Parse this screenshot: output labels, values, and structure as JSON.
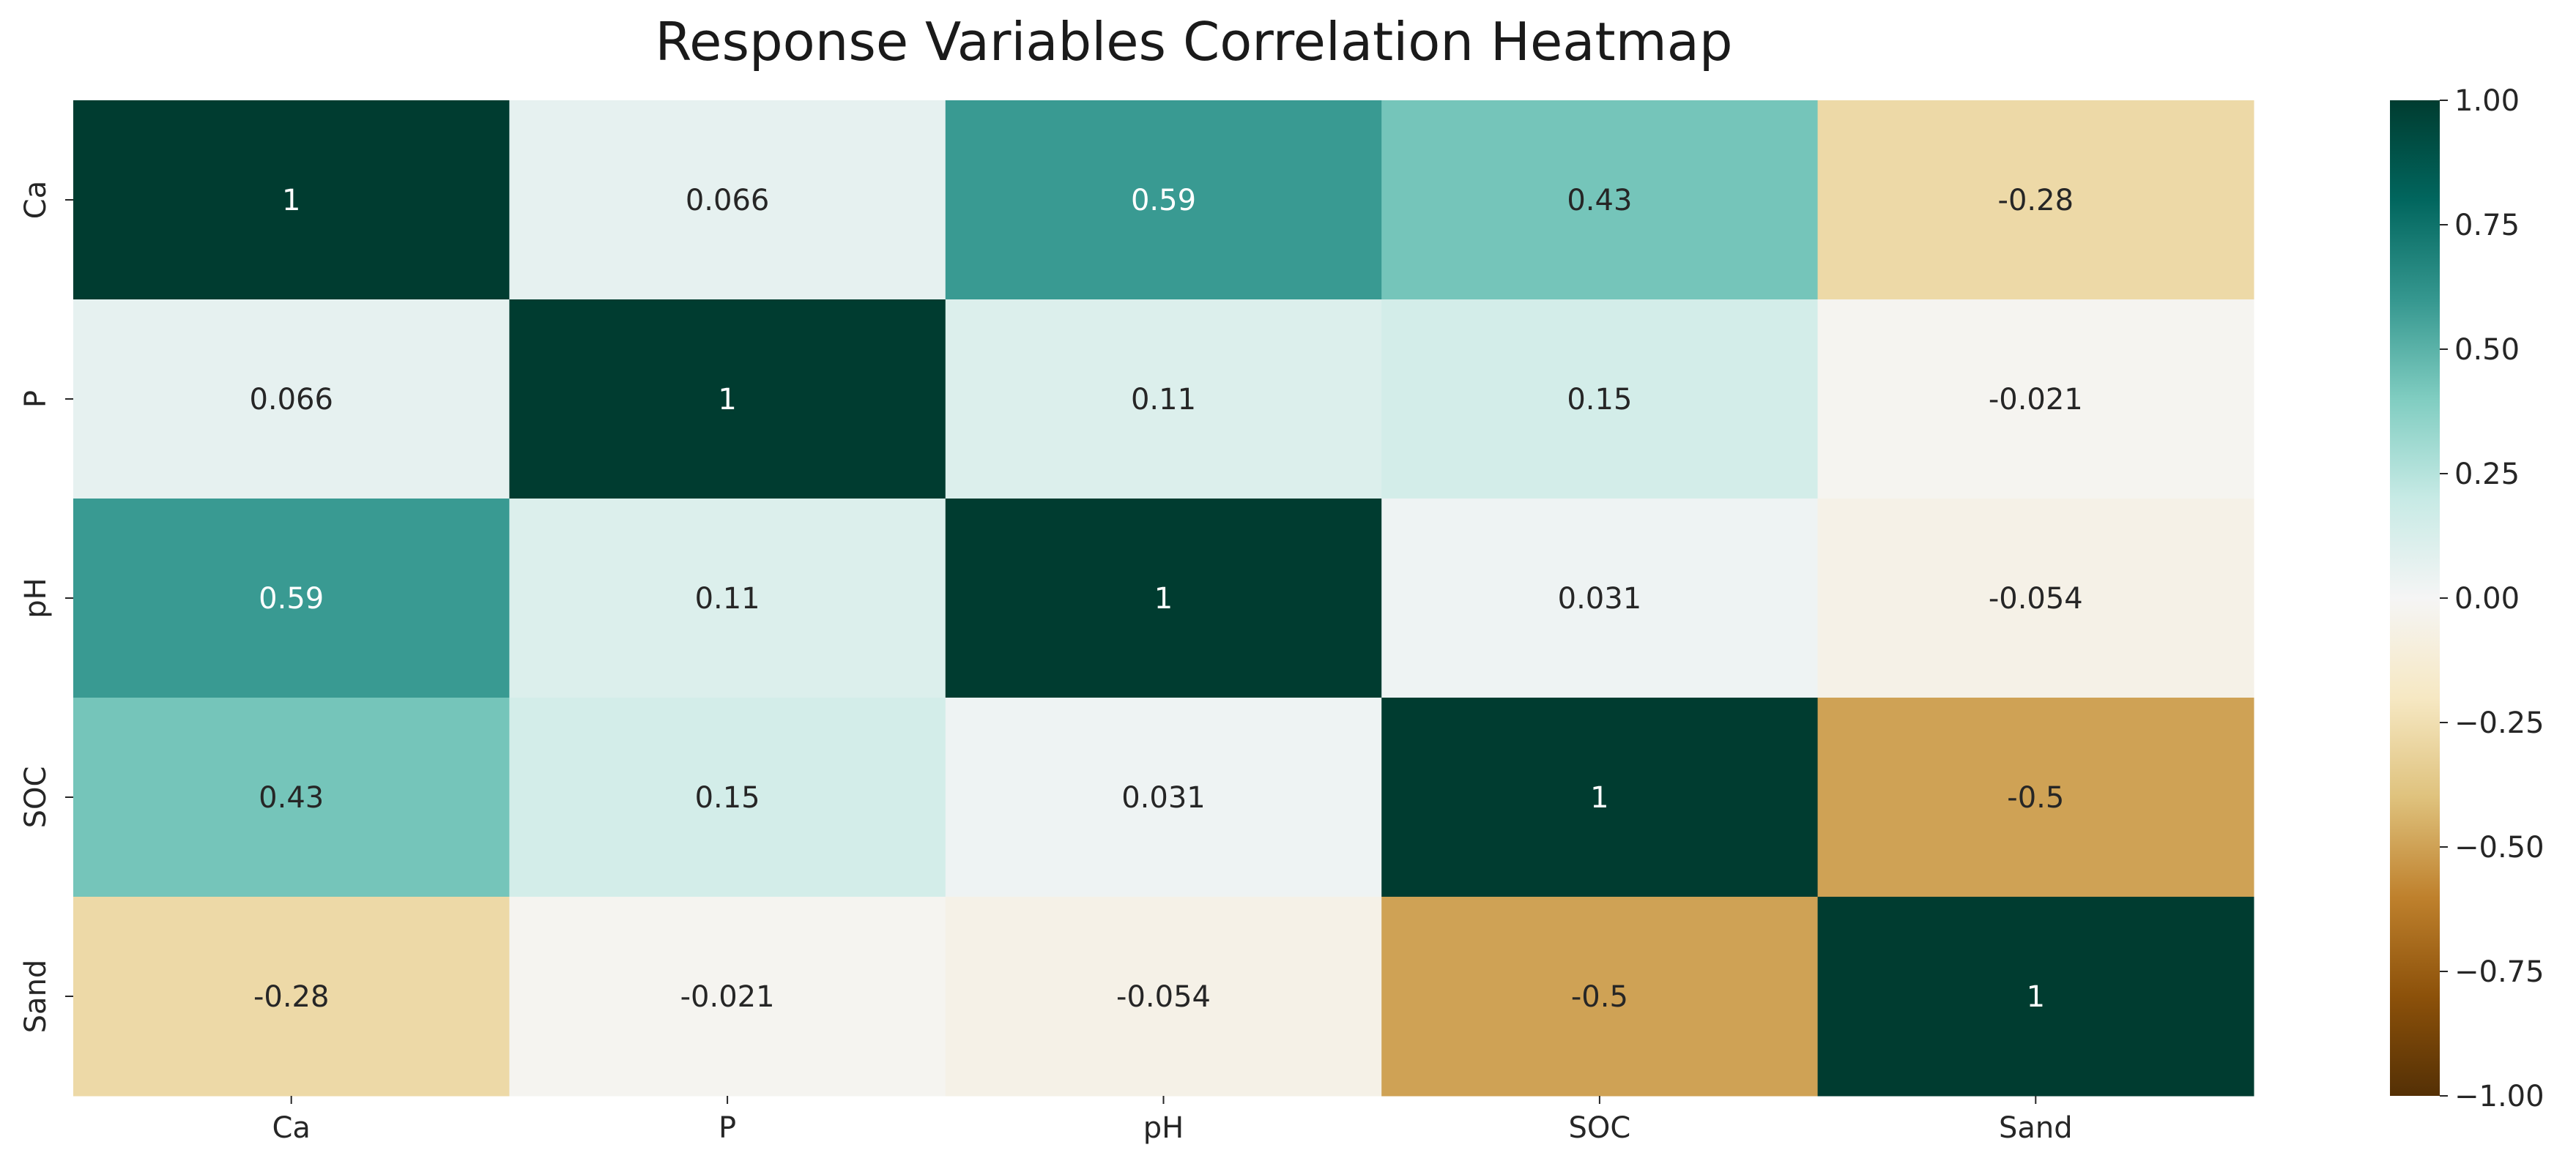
{
  "chart_data": {
    "type": "heatmap",
    "title": "Response Variables Correlation Heatmap",
    "x_categories": [
      "Ca",
      "P",
      "pH",
      "SOC",
      "Sand"
    ],
    "y_categories": [
      "Ca",
      "P",
      "pH",
      "SOC",
      "Sand"
    ],
    "matrix": [
      [
        1,
        0.066,
        0.59,
        0.43,
        -0.28
      ],
      [
        0.066,
        1,
        0.11,
        0.15,
        -0.021
      ],
      [
        0.59,
        0.11,
        1,
        0.031,
        -0.054
      ],
      [
        0.43,
        0.15,
        0.031,
        1,
        -0.5
      ],
      [
        -0.28,
        -0.021,
        -0.054,
        -0.5,
        1
      ]
    ],
    "cell_labels": [
      [
        "1",
        "0.066",
        "0.59",
        "0.43",
        "-0.28"
      ],
      [
        "0.066",
        "1",
        "0.11",
        "0.15",
        "-0.021"
      ],
      [
        "0.59",
        "0.11",
        "1",
        "0.031",
        "-0.054"
      ],
      [
        "0.43",
        "0.15",
        "0.031",
        "1",
        "-0.5"
      ],
      [
        "-0.28",
        "-0.021",
        "-0.054",
        "-0.5",
        "1"
      ]
    ],
    "colorbar": {
      "min": -1.0,
      "max": 1.0,
      "ticks": [
        "1.00",
        "0.75",
        "0.50",
        "0.25",
        "0.00",
        "−0.25",
        "−0.50",
        "−0.75",
        "−1.00"
      ],
      "tick_values": [
        1.0,
        0.75,
        0.5,
        0.25,
        0.0,
        -0.25,
        -0.5,
        -0.75,
        -1.0
      ]
    },
    "colormap": {
      "name": "BrBG",
      "stops": [
        "#543005",
        "#8c510a",
        "#bf812d",
        "#dfc27d",
        "#f6e8c3",
        "#f5f5f5",
        "#c7eae5",
        "#80cdc1",
        "#35978f",
        "#01665e",
        "#003c30"
      ]
    }
  }
}
